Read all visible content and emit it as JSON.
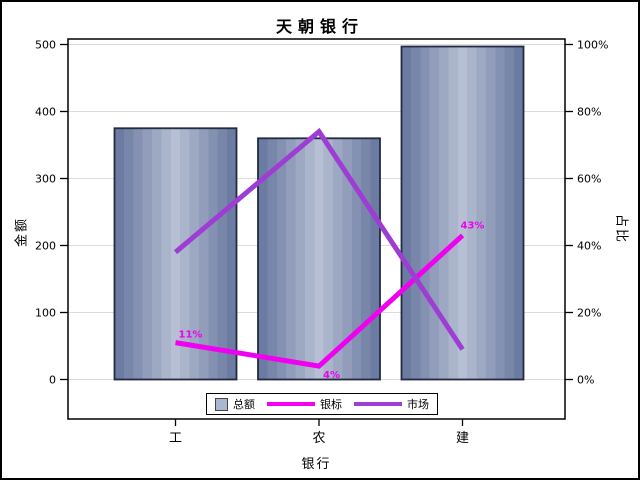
{
  "chart_data": {
    "type": "combo-bar-line",
    "title": "天朝银行",
    "categories": [
      "工",
      "农",
      "建"
    ],
    "xlabel": "银行",
    "left_axis": {
      "label": "金额",
      "ticks": [
        "0",
        "100",
        "200",
        "300",
        "400",
        "500"
      ],
      "range": [
        0,
        500
      ]
    },
    "right_axis": {
      "label": "占比",
      "ticks": [
        "0%",
        "20%",
        "40%",
        "60%",
        "80%",
        "100%"
      ],
      "range": [
        0,
        100
      ]
    },
    "series": [
      {
        "name": "总额",
        "type": "bar",
        "axis": "left",
        "values": [
          375,
          360,
          497
        ]
      },
      {
        "name": "银标",
        "type": "line",
        "axis": "right",
        "values": [
          11,
          4,
          43
        ],
        "point_labels": [
          "11%",
          "4%",
          "43%"
        ],
        "color": "#f000f0"
      },
      {
        "name": "市场",
        "type": "line",
        "axis": "right",
        "values": [
          38,
          74,
          9
        ],
        "color": "#9e3dd4"
      }
    ],
    "grid": true,
    "legend_position": "bottom-inside",
    "colors": {
      "bar_edge": "#66759d",
      "bar_center": "#b6bfd3",
      "bar_border": "#232b40",
      "legend_bar_swatch": "#aab7d1",
      "gridline": "#dcdcdc",
      "frame": "#000000"
    }
  }
}
